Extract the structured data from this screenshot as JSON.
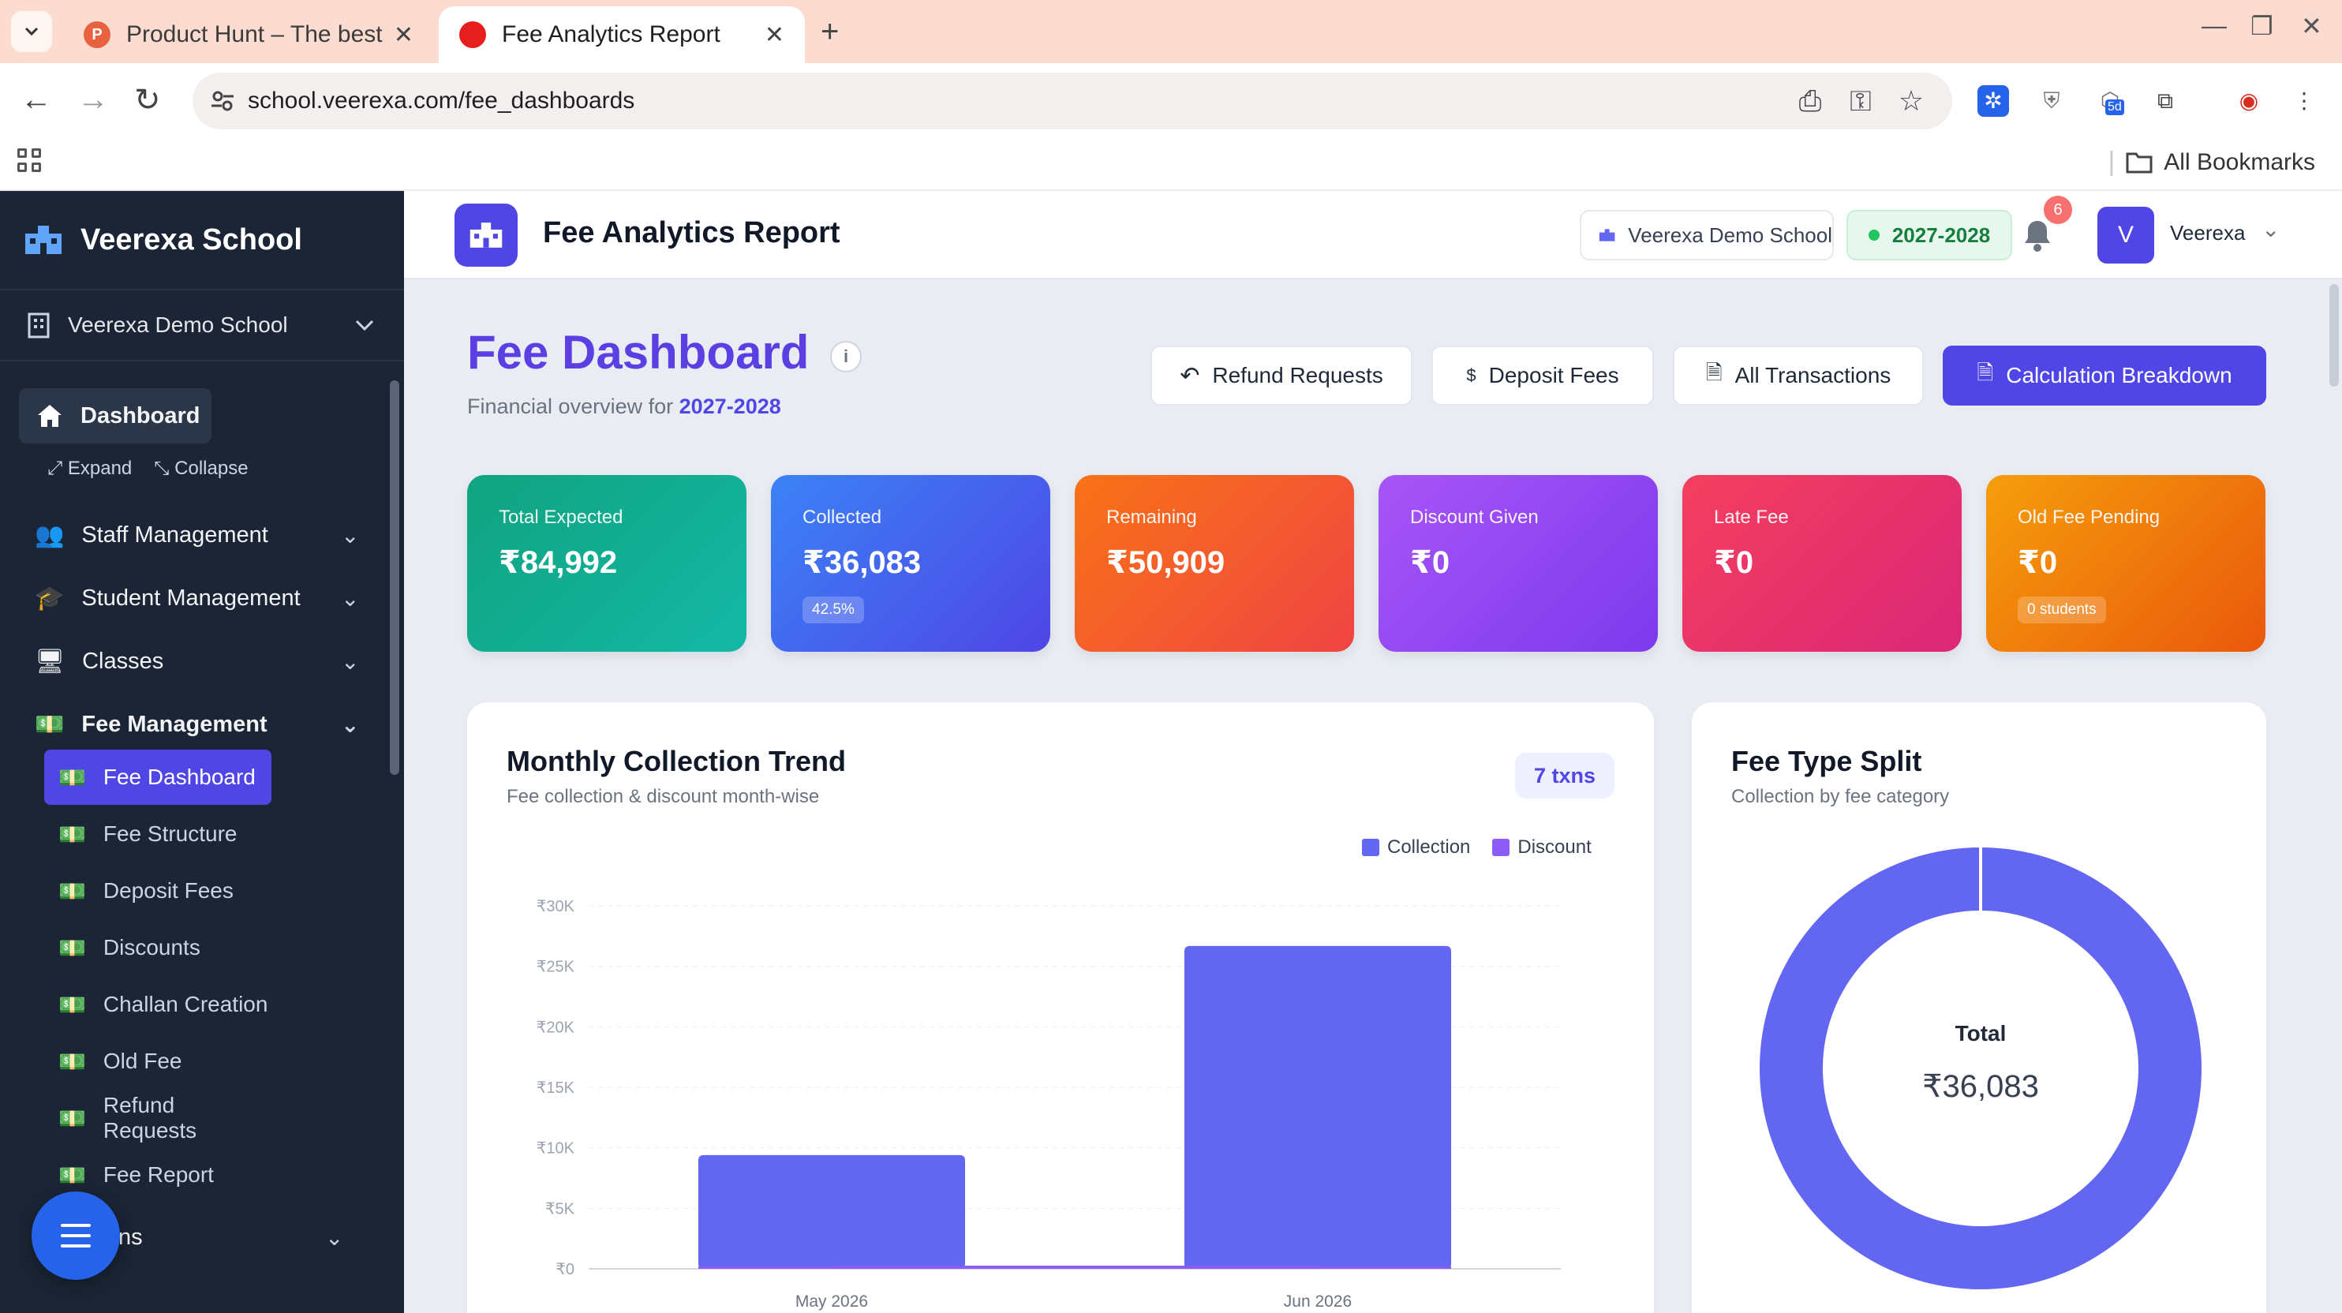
{
  "browser": {
    "tabs": [
      {
        "title": "Product Hunt – The best",
        "active": false
      },
      {
        "title": "Fee Analytics Report",
        "active": true
      }
    ],
    "url": "school.veerexa.com/fee_dashboards",
    "all_bookmarks": "All Bookmarks",
    "extension_badge": "5d"
  },
  "sidebar": {
    "brand": "Veerexa School",
    "school": "Veerexa Demo School",
    "dashboard": "Dashboard",
    "expand": "Expand",
    "collapse": "Collapse",
    "groups": [
      "Staff Management",
      "Student Management",
      "Classes",
      "Fee Management"
    ],
    "fee_items": [
      "Fee Dashboard",
      "Fee Structure",
      "Deposit Fees",
      "Discounts",
      "Challan Creation",
      "Old Fee",
      "Refund Requests",
      "Fee Report"
    ],
    "partial_item": "ns"
  },
  "header": {
    "title": "Fee Analytics Report",
    "school": "Veerexa Demo School",
    "year": "2027-2028",
    "notifications": "6",
    "avatar_letter": "V",
    "user": "Veerexa"
  },
  "page": {
    "title": "Fee Dashboard",
    "subtitle_prefix": "Financial overview for",
    "subtitle_year": "2027-2028",
    "actions": {
      "refund": "Refund Requests",
      "deposit": "Deposit Fees",
      "transactions": "All Transactions",
      "breakdown": "Calculation Breakdown"
    }
  },
  "stats": [
    {
      "label": "Total Expected",
      "value": "₹84,992",
      "pill": "",
      "from": "#10a37f",
      "to": "#14b8a6"
    },
    {
      "label": "Collected",
      "value": "₹36,083",
      "pill": "42.5%",
      "from": "#3b82f6",
      "to": "#4f46e5"
    },
    {
      "label": "Remaining",
      "value": "₹50,909",
      "pill": "",
      "from": "#f97316",
      "to": "#ef4444"
    },
    {
      "label": "Discount Given",
      "value": "₹0",
      "pill": "",
      "from": "#a855f7",
      "to": "#7c3aed"
    },
    {
      "label": "Late Fee",
      "value": "₹0",
      "pill": "",
      "from": "#f43f5e",
      "to": "#db2777"
    },
    {
      "label": "Old Fee Pending",
      "value": "₹0",
      "pill": "0 students",
      "from": "#f59e0b",
      "to": "#ea580c"
    }
  ],
  "trend": {
    "title": "Monthly Collection Trend",
    "subtitle": "Fee collection & discount month-wise",
    "badge": "7 txns"
  },
  "split": {
    "title": "Fee Type Split",
    "subtitle": "Collection by fee category",
    "center_label": "Total",
    "center_value": "₹36,083"
  },
  "colors": {
    "accent": "#4f46e5",
    "bar": "#6366f1",
    "discount": "#8b5cf6",
    "sidebar": "#1b2535"
  },
  "chart_data": [
    {
      "type": "bar",
      "categories": [
        "May 2026",
        "Jun 2026"
      ],
      "series": [
        {
          "name": "Collection",
          "values": [
            9400,
            26683
          ]
        },
        {
          "name": "Discount",
          "values": [
            0,
            0
          ]
        }
      ],
      "ylim": [
        0,
        30000
      ],
      "yticks": [
        "₹0",
        "₹5K",
        "₹10K",
        "₹15K",
        "₹20K",
        "₹25K",
        "₹30K"
      ],
      "ytick_values": [
        0,
        5000,
        10000,
        15000,
        20000,
        25000,
        30000
      ],
      "legend": "top-right",
      "grid": true
    },
    {
      "type": "pie",
      "labels": [
        ""
      ],
      "values": [
        36083
      ],
      "donut": true
    }
  ]
}
